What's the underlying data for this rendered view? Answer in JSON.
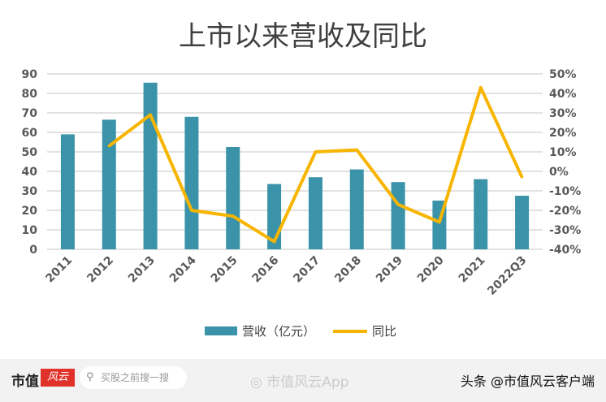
{
  "chart_data": {
    "type": "bar+line",
    "title": "上市以来营收及同比",
    "categories": [
      "2011",
      "2012",
      "2013",
      "2014",
      "2015",
      "2016",
      "2017",
      "2018",
      "2019",
      "2020",
      "2021",
      "2022Q3"
    ],
    "series": [
      {
        "name": "营收（亿元）",
        "type": "bar",
        "axis": "left",
        "color": "#3a93a8",
        "values": [
          59,
          66.5,
          85.5,
          68,
          52.5,
          33.5,
          37,
          41,
          34.5,
          25,
          36,
          27.5
        ]
      },
      {
        "name": "同比",
        "type": "line",
        "axis": "right",
        "color": "#f7b500",
        "values": [
          null,
          13,
          29,
          -20,
          -23,
          -36,
          10,
          11,
          -17,
          -26,
          43,
          -3
        ]
      }
    ],
    "ylim_left": [
      0,
      90
    ],
    "yticks_left": [
      "0",
      "10",
      "20",
      "30",
      "40",
      "50",
      "60",
      "70",
      "80",
      "90"
    ],
    "ylim_right": [
      -40,
      50
    ],
    "yticks_right": [
      "-40%",
      "-30%",
      "-20%",
      "-10%",
      "0%",
      "10%",
      "20%",
      "30%",
      "40%",
      "50%"
    ],
    "grid": true,
    "legend": "bottom"
  },
  "footer": {
    "brand": "市值",
    "brand_logo": "风云",
    "search_placeholder": "买股之前搜一搜",
    "weibo": "市值风云App",
    "toutiao": "头条 @市值风云客户端"
  },
  "icons": {
    "search": "search-icon",
    "weibo": "weibo-icon"
  }
}
